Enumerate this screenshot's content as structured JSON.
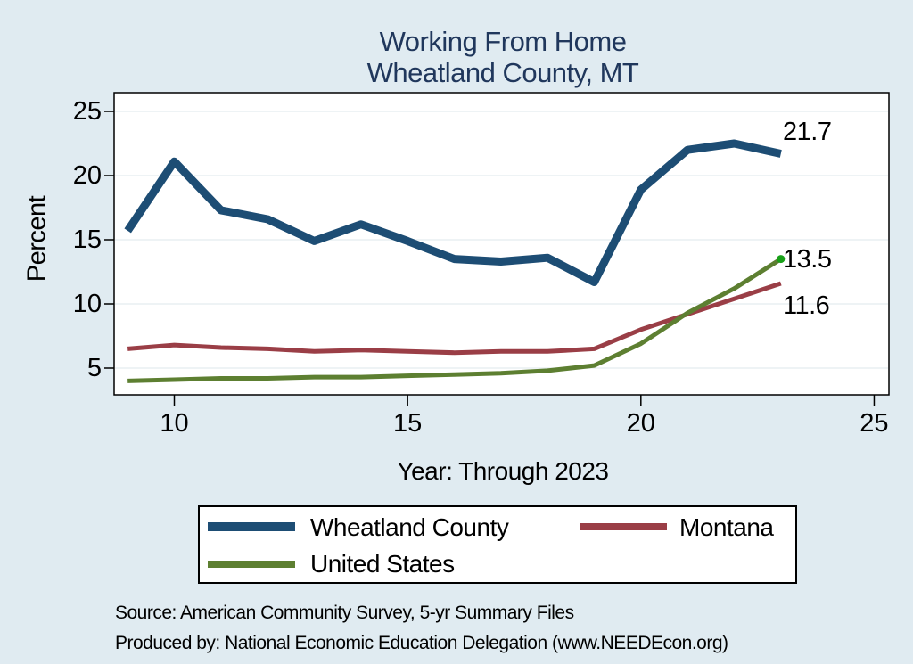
{
  "title": {
    "line1": "Working From Home",
    "line2": "Wheatland County, MT"
  },
  "colors": {
    "background": "#e0ebf1",
    "title_text": "#20375c",
    "gridline": "#e8eff2",
    "axis": "#000000",
    "plot_background": "#ffffff",
    "legend_border": "#000000"
  },
  "chart_data": {
    "type": "line",
    "title": "Working From Home",
    "subtitle": "Wheatland County, MT",
    "xlabel": "Year: Through 2023",
    "ylabel": "Percent",
    "x": [
      9,
      10,
      11,
      12,
      13,
      14,
      15,
      16,
      17,
      18,
      19,
      20,
      21,
      22,
      23
    ],
    "x_tick_values": [
      10,
      15,
      20,
      25
    ],
    "y_tick_values": [
      5,
      10,
      15,
      20,
      25
    ],
    "xlim": [
      8.7,
      25.3
    ],
    "ylim": [
      2.9,
      26.5
    ],
    "grid": "horizontal-only",
    "legend_position": "bottom-box",
    "series": [
      {
        "name": "Wheatland County",
        "color": "#1d4d74",
        "values": [
          15.7,
          21.1,
          17.3,
          16.6,
          14.9,
          16.2,
          14.9,
          13.5,
          13.3,
          13.6,
          11.7,
          18.9,
          22.0,
          22.5,
          21.7
        ],
        "end_label": "21.7"
      },
      {
        "name": "Montana",
        "color": "#9a3e46",
        "values": [
          6.5,
          6.8,
          6.6,
          6.5,
          6.3,
          6.4,
          6.3,
          6.2,
          6.3,
          6.3,
          6.5,
          8.0,
          9.2,
          10.4,
          11.6
        ],
        "end_label": "11.6"
      },
      {
        "name": "United States",
        "color": "#5d7f31",
        "values": [
          4.0,
          4.1,
          4.2,
          4.2,
          4.3,
          4.3,
          4.4,
          4.5,
          4.6,
          4.8,
          5.2,
          6.9,
          9.3,
          11.2,
          13.5
        ],
        "end_label": "13.5",
        "end_marker_color": "#18a018"
      }
    ]
  },
  "footer": {
    "source": "Source: American Community Survey, 5-yr Summary Files",
    "produced_by": "Produced by: National Economic Education Delegation (www.NEEDEcon.org)"
  }
}
